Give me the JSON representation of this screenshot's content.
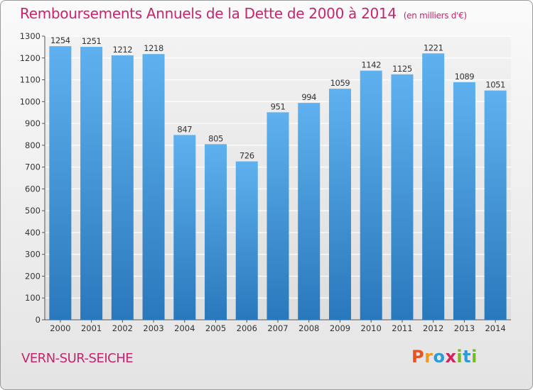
{
  "title": "Remboursements Annuels de la Dette de 2000 à 2014",
  "unit": "(en milliers d'€)",
  "city": "VERN-SUR-SEICHE",
  "logo": {
    "letters": [
      "P",
      "r",
      "o",
      "x",
      "i",
      "t",
      "i"
    ],
    "colors": [
      "#e8531f",
      "#f29a1f",
      "#2e9ad8",
      "#d81f5d",
      "#78b72a",
      "#2e9ad8",
      "#78b72a"
    ]
  },
  "colors": {
    "bar_top": "#5eb1ee",
    "bar_bottom": "#2a78bc",
    "title": "#c8246e",
    "grid": "#ffffff"
  },
  "chart_data": {
    "type": "bar",
    "title": "Remboursements Annuels de la Dette de 2000 à 2014",
    "ylabel": "en milliers d'€",
    "xlabel": "",
    "categories": [
      "2000",
      "2001",
      "2002",
      "2003",
      "2004",
      "2005",
      "2006",
      "2007",
      "2008",
      "2009",
      "2010",
      "2011",
      "2012",
      "2013",
      "2014"
    ],
    "values": [
      1254,
      1251,
      1212,
      1218,
      847,
      805,
      726,
      951,
      994,
      1059,
      1142,
      1125,
      1221,
      1089,
      1051
    ],
    "ylim": [
      0,
      1300
    ],
    "yticks": [
      0,
      100,
      200,
      300,
      400,
      500,
      600,
      700,
      800,
      900,
      1000,
      1100,
      1200,
      1300
    ],
    "grid": true,
    "legend": "none"
  }
}
